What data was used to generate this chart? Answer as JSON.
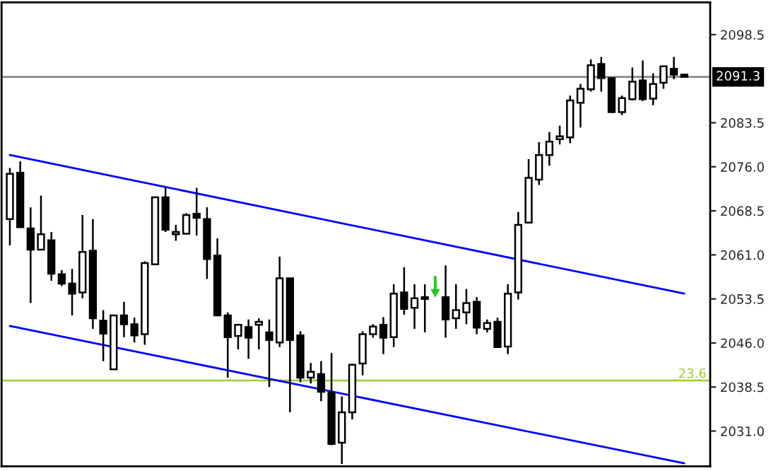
{
  "chart_data": {
    "type": "candlestick",
    "color": "#000000",
    "categories": [
      null,
      null,
      null,
      null,
      null,
      null,
      null,
      null,
      null,
      null,
      null,
      null,
      null,
      null,
      null,
      null,
      null,
      null,
      null,
      null,
      null,
      null,
      null,
      null,
      null,
      null,
      null,
      null,
      null,
      null,
      null,
      null,
      null,
      null,
      null,
      null,
      null,
      null,
      null,
      null,
      null,
      null,
      null,
      null,
      null,
      null,
      null,
      null,
      null,
      null,
      null,
      null,
      null,
      null,
      null,
      null,
      null,
      null,
      null,
      null,
      null,
      null,
      null,
      null,
      null,
      null
    ],
    "annotations": [
      {
        "text": "23.6",
        "y": 2039.6
      }
    ],
    "ohlc": [
      [
        2067.1,
        2075.8,
        2062.6,
        2074.8
      ],
      [
        2075.0,
        2076.9,
        2065.7,
        2065.7
      ],
      [
        2065.5,
        2069.1,
        2052.8,
        2061.9
      ],
      [
        2061.9,
        2071.1,
        2061.9,
        2064.5
      ],
      [
        2063.5,
        2064.9,
        2056.6,
        2057.8
      ],
      [
        2057.7,
        2058.4,
        2055.7,
        2056.1
      ],
      [
        2056.1,
        2058.6,
        2050.7,
        2054.4
      ],
      [
        2054.6,
        2067.8,
        2053.6,
        2061.5
      ],
      [
        2061.7,
        2067.1,
        2048.4,
        2050.2
      ],
      [
        2049.8,
        2051.6,
        2042.9,
        2047.6
      ],
      [
        2041.5,
        2050.7,
        2041.5,
        2050.7
      ],
      [
        2050.7,
        2053.0,
        2047.0,
        2049.2
      ],
      [
        2049.2,
        2050.3,
        2046.1,
        2047.3
      ],
      [
        2047.5,
        2059.9,
        2045.7,
        2059.6
      ],
      [
        2059.4,
        2070.8,
        2059.4,
        2070.8
      ],
      [
        2070.8,
        2072.6,
        2064.9,
        2065.3
      ],
      [
        2064.5,
        2066.1,
        2063.4,
        2064.9
      ],
      [
        2064.6,
        2068.1,
        2064.6,
        2067.8
      ],
      [
        2068.0,
        2072.4,
        2064.3,
        2067.3
      ],
      [
        2067.1,
        2069.1,
        2056.9,
        2060.3
      ],
      [
        2060.9,
        2063.8,
        2050.7,
        2050.7
      ],
      [
        2050.7,
        2051.2,
        2040.1,
        2047.0
      ],
      [
        2047.2,
        2049.1,
        2044.9,
        2049.1
      ],
      [
        2048.7,
        2050.0,
        2043.3,
        2046.9
      ],
      [
        2049.1,
        2050.2,
        2044.9,
        2049.6
      ],
      [
        2047.8,
        2050.0,
        2038.5,
        2046.5
      ],
      [
        2046.1,
        2060.7,
        2045.3,
        2057.0
      ],
      [
        2057.0,
        2057.0,
        2034.2,
        2046.5
      ],
      [
        2047.3,
        2048.0,
        2039.3,
        2040.1
      ],
      [
        2040.1,
        2042.6,
        2039.1,
        2041.1
      ],
      [
        2040.7,
        2042.9,
        2036.1,
        2037.7
      ],
      [
        2037.5,
        2044.3,
        2028.6,
        2028.8
      ],
      [
        2029.0,
        2036.9,
        2025.4,
        2034.2
      ],
      [
        2034.2,
        2042.3,
        2033.0,
        2042.3
      ],
      [
        2042.5,
        2048.0,
        2040.5,
        2047.5
      ],
      [
        2047.5,
        2049.2,
        2046.9,
        2048.8
      ],
      [
        2049.1,
        2050.4,
        2044.1,
        2046.9
      ],
      [
        2047.0,
        2056.0,
        2045.3,
        2054.4
      ],
      [
        2054.6,
        2058.9,
        2050.8,
        2051.8
      ],
      [
        2052.0,
        2056.0,
        2048.4,
        2053.6
      ],
      [
        2053.5,
        2056.0,
        2047.8,
        2053.8
      ],
      null,
      [
        2053.8,
        2059.2,
        2046.9,
        2050.0
      ],
      [
        2050.2,
        2056.0,
        2048.4,
        2051.6
      ],
      [
        2051.2,
        2055.2,
        2049.2,
        2052.8
      ],
      [
        2053.0,
        2053.8,
        2047.5,
        2048.6
      ],
      [
        2048.4,
        2050.0,
        2047.8,
        2049.4
      ],
      [
        2049.6,
        2050.3,
        2045.3,
        2045.3
      ],
      [
        2045.4,
        2056.0,
        2044.1,
        2054.4
      ],
      [
        2054.6,
        2068.3,
        2053.4,
        2066.1
      ],
      [
        2066.5,
        2077.3,
        2066.5,
        2074.1
      ],
      [
        2073.8,
        2080.2,
        2072.9,
        2078.0
      ],
      [
        2078.0,
        2081.9,
        2076.2,
        2080.3
      ],
      [
        2080.7,
        2083.0,
        2079.8,
        2081.2
      ],
      [
        2081.0,
        2088.1,
        2080.0,
        2087.3
      ],
      [
        2086.9,
        2090.1,
        2082.7,
        2089.3
      ],
      [
        2089.2,
        2094.3,
        2088.8,
        2093.3
      ],
      [
        2093.5,
        2094.7,
        2088.8,
        2091.1
      ],
      [
        2091.1,
        2091.1,
        2085.2,
        2085.3
      ],
      [
        2085.3,
        2088.1,
        2084.8,
        2087.7
      ],
      [
        2087.5,
        2092.9,
        2087.3,
        2090.5
      ],
      [
        2090.7,
        2094.1,
        2087.2,
        2087.5
      ],
      [
        2087.6,
        2091.9,
        2086.5,
        2090.1
      ],
      [
        2090.3,
        2093.1,
        2089.3,
        2093.1
      ],
      [
        2092.7,
        2094.7,
        2090.9,
        2091.7
      ],
      [
        2091.7,
        2091.7,
        2091.3,
        2091.3
      ]
    ],
    "series": [
      {
        "type": "line",
        "values": [
          2078.0,
          null,
          null,
          null,
          null,
          null,
          null,
          null,
          null,
          null,
          null,
          null,
          null,
          null,
          null,
          null,
          null,
          null,
          null,
          null,
          null,
          null,
          null,
          null,
          null,
          null,
          null,
          null,
          null,
          null,
          null,
          null,
          null,
          null,
          null,
          null,
          null,
          null,
          null,
          null,
          null,
          null,
          null,
          null,
          null,
          null,
          null,
          null,
          null,
          null,
          null,
          null,
          null,
          null,
          null,
          null,
          null,
          null,
          null,
          null,
          null,
          null,
          null,
          null,
          null,
          2054.4
        ],
        "color": "#0000ff"
      },
      {
        "type": "line",
        "values": [
          2048.9,
          null,
          null,
          null,
          null,
          null,
          null,
          null,
          null,
          null,
          null,
          null,
          null,
          null,
          null,
          null,
          null,
          null,
          null,
          null,
          null,
          null,
          null,
          null,
          null,
          null,
          null,
          null,
          null,
          null,
          null,
          null,
          null,
          null,
          null,
          null,
          null,
          null,
          null,
          null,
          null,
          null,
          null,
          null,
          null,
          null,
          null,
          null,
          null,
          null,
          null,
          null,
          null,
          null,
          null,
          null,
          null,
          null,
          null,
          null,
          null,
          null,
          null,
          null,
          null,
          2025.5
        ],
        "color": "#0000ff"
      }
    ],
    "ylim": [
      2025.0,
      2104.0
    ],
    "yticks": [
      {
        "value": 2098.5,
        "label": "2098.5"
      },
      {
        "value": 2083.5,
        "label": "2083.5"
      },
      {
        "value": 2076.0,
        "label": "2076.0"
      },
      {
        "value": 2068.5,
        "label": "2068.5"
      },
      {
        "value": 2061.0,
        "label": "2061.0"
      },
      {
        "value": 2053.5,
        "label": "2053.5"
      },
      {
        "value": 2046.0,
        "label": "2046.0"
      },
      {
        "value": 2038.5,
        "label": "2038.5"
      },
      {
        "value": 2031.0,
        "label": "2031.0"
      }
    ],
    "ref_lines": [
      {
        "axis": "y",
        "value": 2091.3,
        "label": "2091.3",
        "color": "#808080"
      },
      {
        "axis": "y",
        "value": 2039.6,
        "color": "#9acd32"
      }
    ],
    "grid": false,
    "legend": false
  }
}
